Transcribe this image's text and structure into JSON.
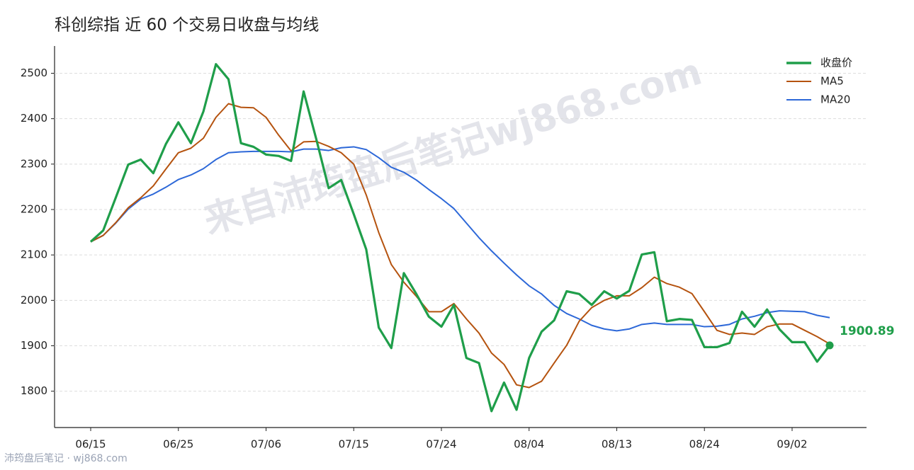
{
  "chart_data": {
    "type": "line",
    "title": "科创综指 近 60 个交易日收盘与均线",
    "watermark": "来自沛筠盘后笔记wj868.com",
    "footer": "沛筠盘后笔记 · wj868.com",
    "categories": [
      "06/15",
      null,
      null,
      null,
      null,
      null,
      null,
      "06/25",
      null,
      null,
      null,
      null,
      null,
      null,
      "07/06",
      null,
      null,
      null,
      null,
      null,
      null,
      "07/15",
      null,
      null,
      null,
      null,
      null,
      null,
      "07/24",
      null,
      null,
      null,
      null,
      null,
      null,
      "08/04",
      null,
      null,
      null,
      null,
      null,
      null,
      "08/13",
      null,
      null,
      null,
      null,
      null,
      null,
      "08/24",
      null,
      null,
      null,
      null,
      null,
      null,
      "09/02",
      null,
      null,
      null
    ],
    "series": [
      {
        "name": "收盘价",
        "color": "#1f9e4a",
        "values": [
          2129,
          2154,
          2226,
          2299,
          2310,
          2280,
          2344,
          2392,
          2346,
          2416,
          2520,
          2487,
          2346,
          2338,
          2321,
          2318,
          2307,
          2460,
          2356,
          2247,
          2265,
          2190,
          2112,
          1940,
          1895,
          2060,
          2014,
          1964,
          1942,
          1990,
          1873,
          1862,
          1756,
          1819,
          1759,
          1873,
          1931,
          1956,
          2020,
          2014,
          1990,
          2020,
          2004,
          2021,
          2101,
          2106,
          1954,
          1959,
          1957,
          1897,
          1897,
          1906,
          1975,
          1942,
          1980,
          1936,
          1908,
          1908,
          1865,
          1900.89
        ]
      },
      {
        "name": "MA5",
        "color": "#b5530f",
        "values": [
          2129,
          2143,
          2171,
          2204,
          2226,
          2252,
          2289,
          2325,
          2335,
          2357,
          2403,
          2433,
          2425,
          2424,
          2403,
          2364,
          2329,
          2349,
          2350,
          2339,
          2325,
          2300,
          2232,
          2149,
          2079,
          2040,
          2009,
          1975,
          1975,
          1993,
          1959,
          1928,
          1884,
          1859,
          1814,
          1808,
          1822,
          1862,
          1901,
          1954,
          1984,
          2000,
          2010,
          2010,
          2028,
          2051,
          2037,
          2029,
          2015,
          1975,
          1934,
          1925,
          1928,
          1925,
          1942,
          1948,
          1948,
          1934,
          1920,
          1904
        ]
      },
      {
        "name": "MA20",
        "color": "#2d68d8",
        "values": [
          2129,
          2143,
          2170,
          2201,
          2223,
          2234,
          2249,
          2266,
          2276,
          2290,
          2310,
          2325,
          2327,
          2328,
          2328,
          2328,
          2327,
          2333,
          2333,
          2330,
          2336,
          2338,
          2332,
          2314,
          2293,
          2282,
          2265,
          2244,
          2224,
          2202,
          2170,
          2138,
          2109,
          2082,
          2056,
          2032,
          2014,
          1989,
          1971,
          1959,
          1945,
          1937,
          1933,
          1937,
          1947,
          1950,
          1947,
          1947,
          1947,
          1942,
          1943,
          1947,
          1959,
          1965,
          1973,
          1977,
          1976,
          1975,
          1967,
          1962
        ]
      }
    ],
    "ylim": [
      1720,
      2560
    ],
    "yticks": [
      1800,
      1900,
      2000,
      2100,
      2200,
      2300,
      2400,
      2500
    ],
    "grid": true,
    "legend": "upper right"
  }
}
